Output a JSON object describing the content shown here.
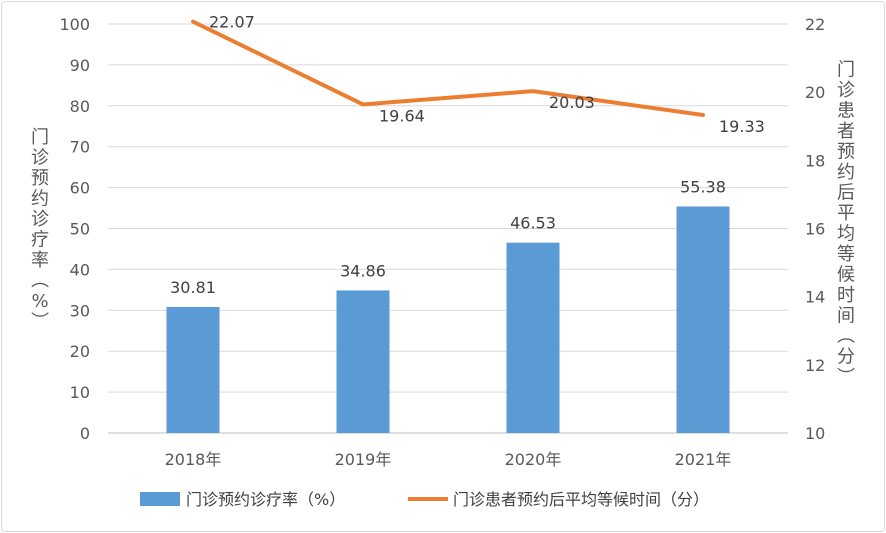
{
  "chart_data": {
    "type": "bar+line",
    "categories": [
      "2018年",
      "2019年",
      "2020年",
      "2021年"
    ],
    "series": [
      {
        "name": "门诊预约诊疗率（%）",
        "type": "bar",
        "axis": "left",
        "color": "#5b9bd5",
        "values": [
          30.81,
          34.86,
          46.53,
          55.38
        ],
        "labels": [
          "30.81",
          "34.86",
          "46.53",
          "55.38"
        ]
      },
      {
        "name": "门诊患者预约后平均等候时间（分）",
        "type": "line",
        "axis": "right",
        "color": "#ed7d31",
        "values": [
          22.07,
          19.64,
          20.03,
          19.33
        ],
        "labels": [
          "22.07",
          "19.64",
          "20.03",
          "19.33"
        ]
      }
    ],
    "ylabel": "门诊预约诊疗率（%）",
    "ylabel_right": "门诊患者预约后平均等候时间（分）",
    "ylim": [
      0,
      100
    ],
    "yticks": [
      "0",
      "10",
      "20",
      "30",
      "40",
      "50",
      "60",
      "70",
      "80",
      "90",
      "100"
    ],
    "ylim_right": [
      10,
      22
    ],
    "yticks_right": [
      "10",
      "12",
      "14",
      "16",
      "18",
      "20",
      "22"
    ],
    "grid": true,
    "legend_position": "bottom"
  }
}
